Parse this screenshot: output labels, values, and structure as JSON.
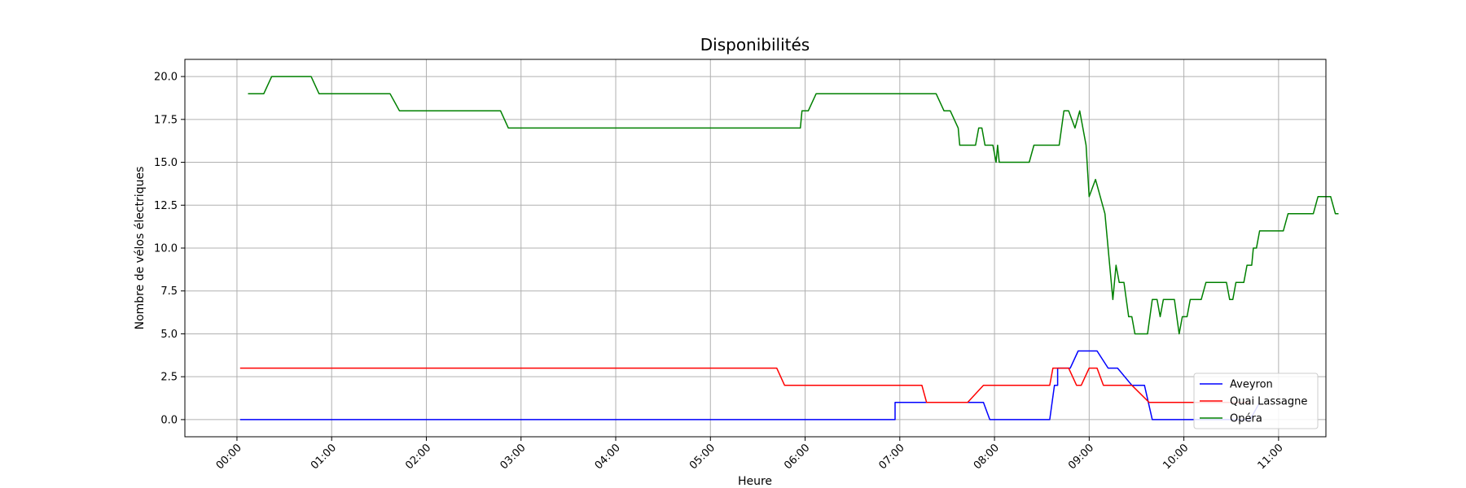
{
  "chart_data": {
    "type": "line",
    "title": "Disponibilités",
    "xlabel": "Heure",
    "ylabel": "Nombre de vélos électriques",
    "x_unit": "time of day (HH:MM)",
    "xlim": [
      "23:27",
      "11:30"
    ],
    "ylim": [
      -1.0,
      21.0
    ],
    "x_ticks": [
      "00:00",
      "01:00",
      "02:00",
      "03:00",
      "04:00",
      "05:00",
      "06:00",
      "07:00",
      "08:00",
      "09:00",
      "10:00",
      "11:00"
    ],
    "y_ticks": [
      "0.0",
      "2.5",
      "5.0",
      "7.5",
      "10.0",
      "12.5",
      "15.0",
      "17.5",
      "20.0"
    ],
    "y_tick_values": [
      0,
      2.5,
      5,
      7.5,
      10,
      12.5,
      15,
      17.5,
      20
    ],
    "grid": true,
    "legend_position": "lower-right",
    "series": [
      {
        "name": "Aveyron",
        "color": "#0000ff",
        "points": [
          [
            "00:02",
            0
          ],
          [
            "06:57",
            0
          ],
          [
            "06:57",
            1
          ],
          [
            "07:53",
            1
          ],
          [
            "07:57",
            0
          ],
          [
            "08:35",
            0
          ],
          [
            "08:38",
            2
          ],
          [
            "08:40",
            2
          ],
          [
            "08:40",
            3
          ],
          [
            "08:48",
            3
          ],
          [
            "08:53",
            4
          ],
          [
            "09:05",
            4
          ],
          [
            "09:12",
            3
          ],
          [
            "09:18",
            3
          ],
          [
            "09:27",
            2
          ],
          [
            "09:35",
            2
          ],
          [
            "09:40",
            0
          ],
          [
            "10:42",
            0
          ],
          [
            "10:48",
            1
          ]
        ]
      },
      {
        "name": "Quai Lassagne",
        "color": "#ff0000",
        "points": [
          [
            "00:02",
            3
          ],
          [
            "05:42",
            3
          ],
          [
            "05:47",
            2
          ],
          [
            "07:14",
            2
          ],
          [
            "07:17",
            1
          ],
          [
            "07:43",
            1
          ],
          [
            "07:53",
            2
          ],
          [
            "08:35",
            2
          ],
          [
            "08:37",
            3
          ],
          [
            "08:47",
            3
          ],
          [
            "08:52",
            2
          ],
          [
            "08:55",
            2
          ],
          [
            "09:00",
            3
          ],
          [
            "09:05",
            3
          ],
          [
            "09:09",
            2
          ],
          [
            "09:27",
            2
          ],
          [
            "09:38",
            1
          ],
          [
            "10:42",
            1
          ]
        ]
      },
      {
        "name": "Opéra",
        "color": "#008000",
        "points": [
          [
            "00:07",
            19
          ],
          [
            "00:17",
            19
          ],
          [
            "00:22",
            20
          ],
          [
            "00:47",
            20
          ],
          [
            "00:52",
            19
          ],
          [
            "01:37",
            19
          ],
          [
            "01:43",
            18
          ],
          [
            "02:47",
            18
          ],
          [
            "02:52",
            17
          ],
          [
            "05:57",
            17
          ],
          [
            "05:58",
            18
          ],
          [
            "06:02",
            18
          ],
          [
            "06:07",
            19
          ],
          [
            "07:23",
            19
          ],
          [
            "07:28",
            18
          ],
          [
            "07:32",
            18
          ],
          [
            "07:37",
            17
          ],
          [
            "07:38",
            16
          ],
          [
            "07:48",
            16
          ],
          [
            "07:50",
            17
          ],
          [
            "07:52",
            17
          ],
          [
            "07:54",
            16
          ],
          [
            "07:59",
            16
          ],
          [
            "08:01",
            15
          ],
          [
            "08:02",
            16
          ],
          [
            "08:03",
            15
          ],
          [
            "08:22",
            15
          ],
          [
            "08:25",
            16
          ],
          [
            "08:41",
            16
          ],
          [
            "08:44",
            18
          ],
          [
            "08:47",
            18
          ],
          [
            "08:51",
            17
          ],
          [
            "08:54",
            18
          ],
          [
            "08:58",
            16
          ],
          [
            "09:00",
            13
          ],
          [
            "09:04",
            14
          ],
          [
            "09:10",
            12
          ],
          [
            "09:13",
            9
          ],
          [
            "09:15",
            7
          ],
          [
            "09:17",
            9
          ],
          [
            "09:19",
            8
          ],
          [
            "09:22",
            8
          ],
          [
            "09:25",
            6
          ],
          [
            "09:27",
            6
          ],
          [
            "09:29",
            5
          ],
          [
            "09:37",
            5
          ],
          [
            "09:40",
            7
          ],
          [
            "09:43",
            7
          ],
          [
            "09:45",
            6
          ],
          [
            "09:47",
            7
          ],
          [
            "09:54",
            7
          ],
          [
            "09:57",
            5
          ],
          [
            "09:59",
            6
          ],
          [
            "10:02",
            6
          ],
          [
            "10:04",
            7
          ],
          [
            "10:11",
            7
          ],
          [
            "10:14",
            8
          ],
          [
            "10:27",
            8
          ],
          [
            "10:29",
            7
          ],
          [
            "10:31",
            7
          ],
          [
            "10:33",
            8
          ],
          [
            "10:38",
            8
          ],
          [
            "10:40",
            9
          ],
          [
            "10:43",
            9
          ],
          [
            "10:44",
            10
          ],
          [
            "10:46",
            10
          ],
          [
            "10:48",
            11
          ],
          [
            "11:03",
            11
          ],
          [
            "11:06",
            12
          ],
          [
            "11:22",
            12
          ],
          [
            "11:25",
            13
          ],
          [
            "11:33",
            13
          ],
          [
            "11:36",
            12
          ],
          [
            "11:38",
            12
          ]
        ]
      }
    ]
  }
}
